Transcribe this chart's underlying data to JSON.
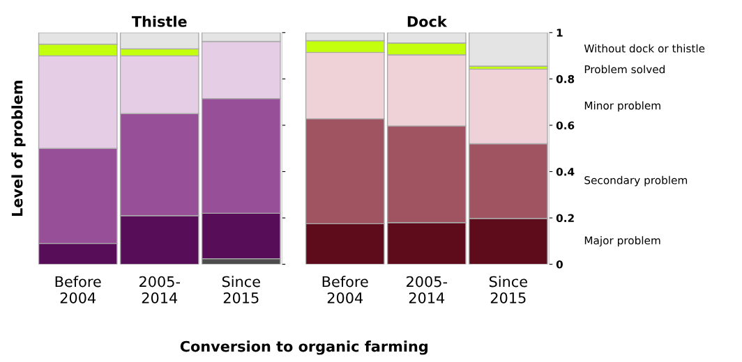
{
  "chart_data": [
    {
      "type": "bar",
      "title": "Thistle",
      "ylabel": "Level of problem",
      "xlabel": "Conversion to organic farming",
      "stacked": true,
      "categories": [
        "Before\n2004",
        "2005-\n2014",
        "Since\n2015"
      ],
      "ylim": [
        0,
        1
      ],
      "yticks": [
        0,
        0.2,
        0.4,
        0.6,
        0.8,
        1
      ],
      "tick_labels": "x",
      "series": [
        {
          "color": "#4d4d4d",
          "values": [
            0,
            0,
            0.024
          ]
        },
        {
          "color": "#570d57",
          "values": [
            0.09,
            0.21,
            0.196
          ]
        },
        {
          "color": "#974f97",
          "values": [
            0.41,
            0.44,
            0.495
          ]
        },
        {
          "color": "#e6cde6",
          "values": [
            0.4,
            0.25,
            0.247
          ]
        },
        {
          "color": "#c4ff0e",
          "values": [
            0.05,
            0.03,
            0
          ]
        },
        {
          "color": "#e4e4e4",
          "values": [
            0.05,
            0.07,
            0.038
          ]
        }
      ]
    },
    {
      "type": "bar",
      "title": "Dock",
      "stacked": true,
      "categories": [
        "Before\n2004",
        "2005-\n2014",
        "Since\n2015"
      ],
      "ylim": [
        0,
        1
      ],
      "yticks": [
        0,
        0.2,
        0.4,
        0.6,
        0.8,
        1
      ],
      "series": [
        {
          "name": "Major problem",
          "color": "#5e0b1c",
          "values": [
            0.175,
            0.18,
            0.198
          ]
        },
        {
          "name": "Secondary problem",
          "color": "#a05462",
          "values": [
            0.453,
            0.417,
            0.322
          ]
        },
        {
          "name": "Minor problem",
          "color": "#efd2d8",
          "values": [
            0.286,
            0.307,
            0.322
          ]
        },
        {
          "name": "Problem solved",
          "color": "#c4ff0e",
          "values": [
            0.051,
            0.051,
            0.013
          ]
        },
        {
          "name": "Without dock or thistle",
          "color": "#e4e4e4",
          "values": [
            0.035,
            0.045,
            0.145
          ]
        }
      ]
    }
  ]
}
